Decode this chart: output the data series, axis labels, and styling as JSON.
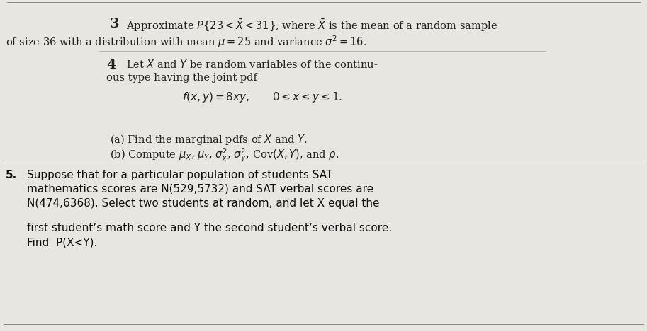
{
  "bg_color": "#e8e6e0",
  "p3_num": "3",
  "p3_line1": "Approximate $P\\{23 < \\bar{X} < 31\\}$, where $\\bar{X}$ is the mean of a random sample",
  "p3_line2": "of size 36 with a distribution with mean $\\mu = 25$ and variance $\\sigma^2 = 16$.",
  "p4_num": "4",
  "p4_line1": "Let $X$ and $Y$ be random variables of the continu-",
  "p4_line2": "ous type having the joint pdf",
  "p4_formula": "$f(x, y) = 8xy, \\qquad 0 \\leq x \\leq y \\leq 1.$",
  "p4a": "(a) Find the marginal pdfs of $X$ and $Y$.",
  "p4b": "(b) Compute $\\mu_X$, $\\mu_Y$, $\\sigma_X^2$, $\\sigma_Y^2$, Cov$(X, Y)$, and $\\rho$.",
  "p5_num": "5.",
  "p5_l1": "Suppose that for a particular population of students SAT",
  "p5_l2": "mathematics scores are N(529,5732) and SAT verbal scores are",
  "p5_l3": "N(474,6368). Select two students at random, and let X equal the",
  "p5_l4": "first student’s math score and Y the second student’s verbal score.",
  "p5_l5": "Find  P(X<Y)."
}
